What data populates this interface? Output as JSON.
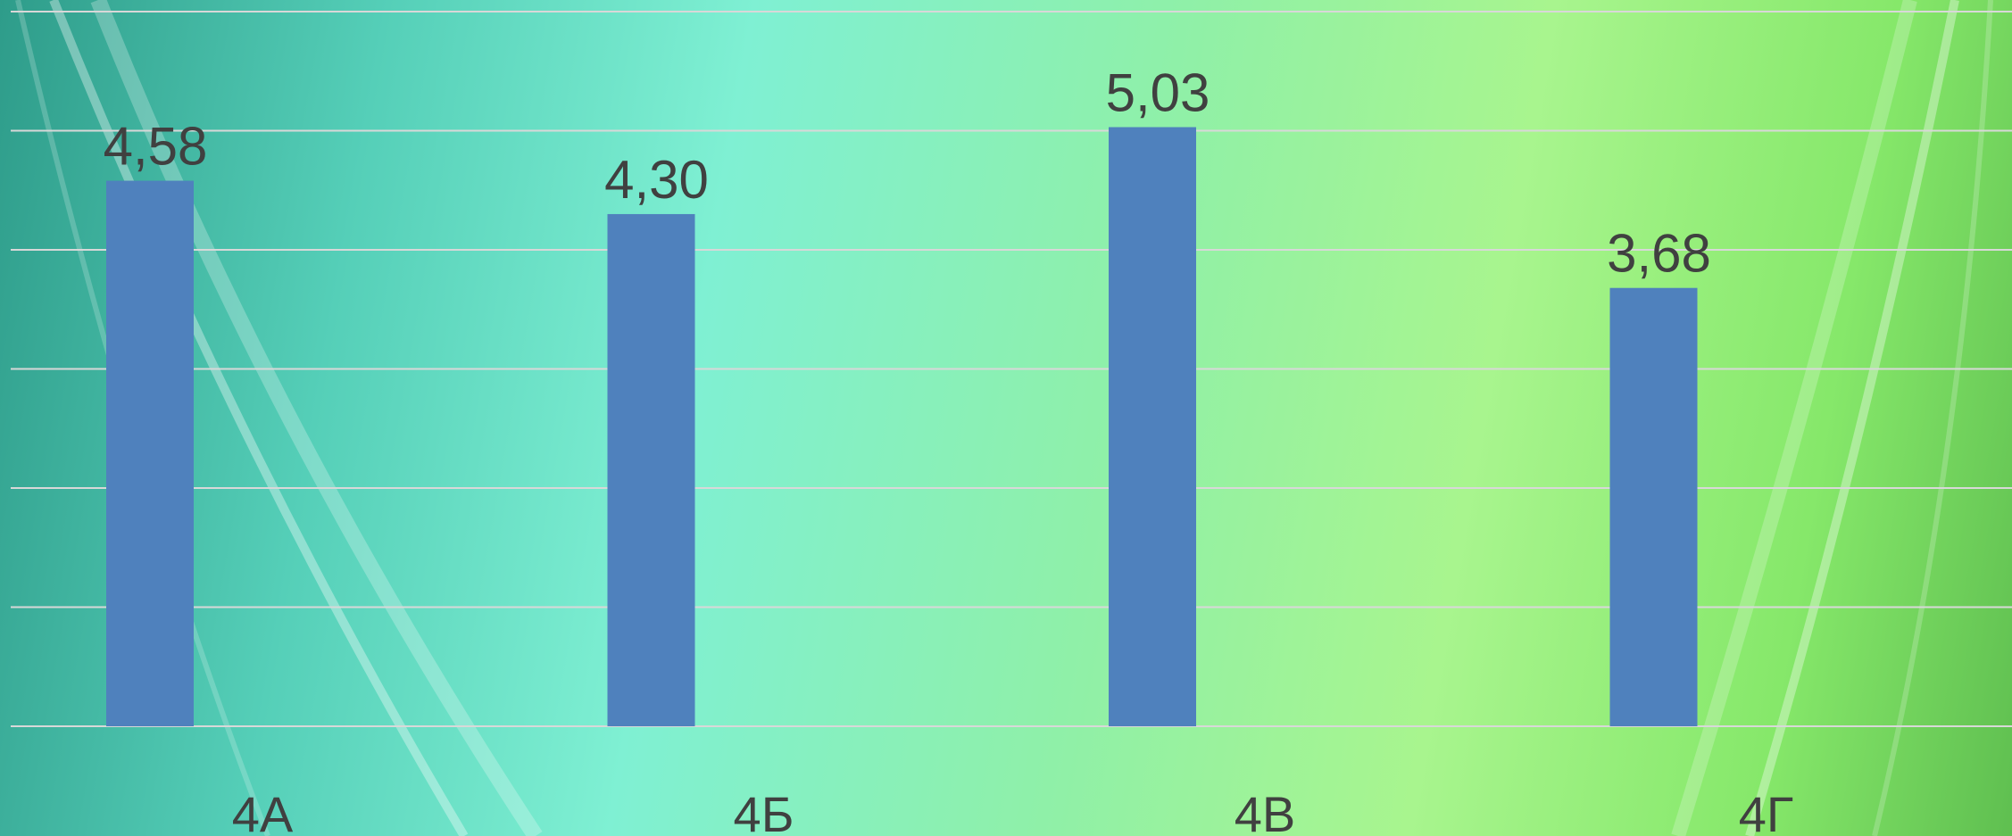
{
  "chart_data": {
    "type": "bar",
    "categories": [
      "4А",
      "4Б",
      "4В",
      "4Г"
    ],
    "values": [
      4.58,
      4.3,
      5.03,
      3.68
    ],
    "value_labels": [
      "4,58",
      "4,30",
      "5,03",
      "3,68"
    ],
    "ylim": [
      0,
      6
    ],
    "grid": true,
    "legend": "none",
    "colors": {
      "bar": "#4f81bd",
      "gridline": "#d8d8d8",
      "text": "#404040"
    }
  }
}
